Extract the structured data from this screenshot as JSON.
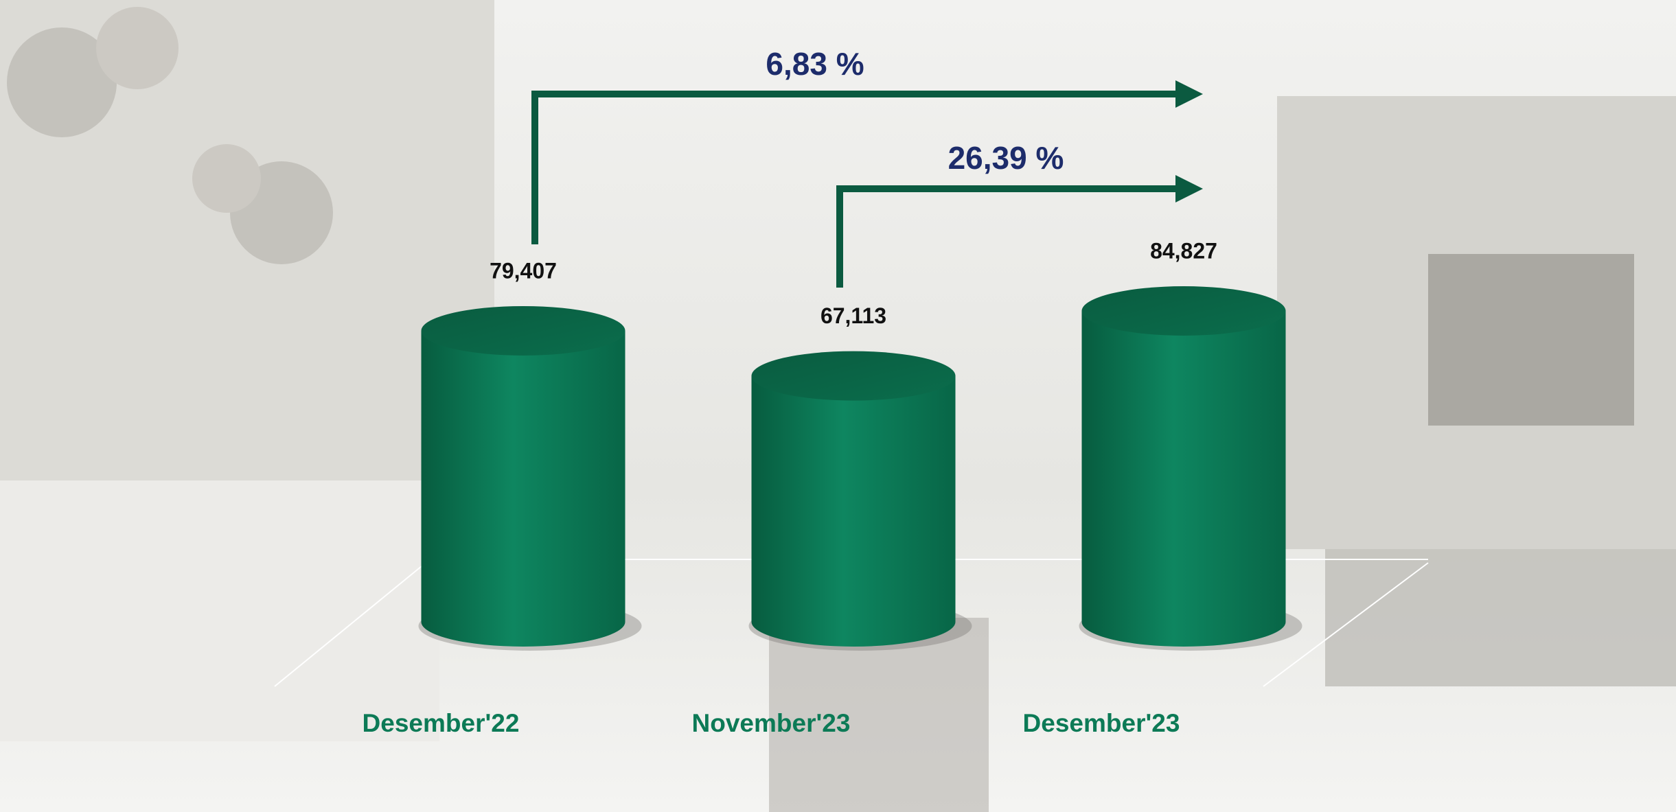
{
  "chart_data": {
    "type": "cylinder",
    "categories": [
      "Desember'22",
      "November'23",
      "Desember'23"
    ],
    "values": [
      79407,
      67113,
      84827
    ],
    "value_labels": [
      "79,407",
      "67,113",
      "84,827"
    ],
    "color": "#0c7a56",
    "annotations": [
      "6,83 %",
      "26,39 %"
    ]
  }
}
